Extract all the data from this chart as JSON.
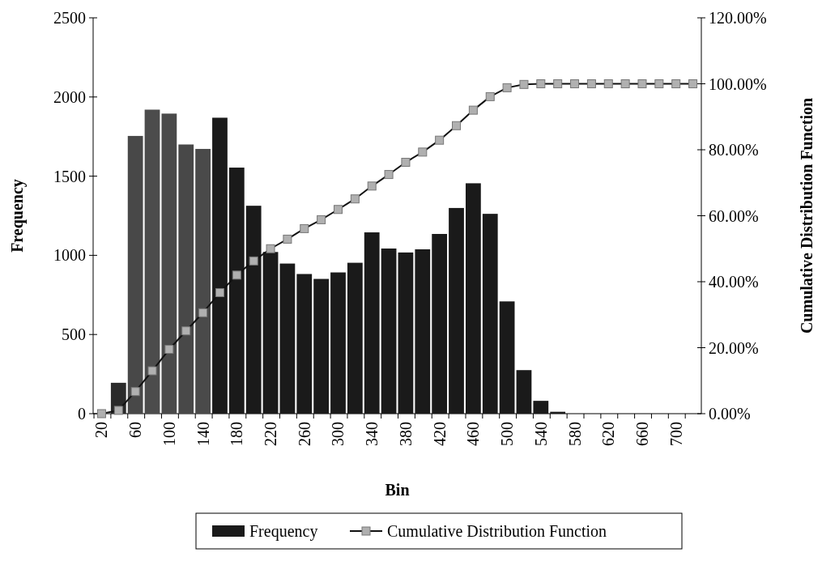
{
  "chart_data": {
    "type": "bar",
    "xlabel": "Bin",
    "ylabel": "Frequency",
    "y2label": "Cumulative Distribution Function",
    "categories": [
      "20",
      null,
      "60",
      null,
      "100",
      null,
      "140",
      null,
      "180",
      null,
      "220",
      null,
      "260",
      null,
      "300",
      null,
      "340",
      null,
      "380",
      null,
      "420",
      null,
      "460",
      null,
      "500",
      null,
      "540",
      null,
      "580",
      null,
      "620",
      null,
      "660",
      null,
      "700",
      null
    ],
    "series": [
      {
        "name": "Frequency",
        "color": "#1a1a1a",
        "colors": [
          "#1a1a1a",
          "#2a2a2a",
          "#484848",
          "#4c4c4c",
          "#4a4a4a",
          "#484848",
          "#4a4a4a",
          "#1a1a1a",
          "#1a1a1a",
          "#1a1a1a",
          "#1a1a1a",
          "#1a1a1a",
          "#1a1a1a",
          "#1a1a1a",
          "#1a1a1a",
          "#1a1a1a",
          "#1a1a1a",
          "#1a1a1a",
          "#1a1a1a",
          "#1a1a1a",
          "#1a1a1a",
          "#1a1a1a",
          "#1a1a1a",
          "#1a1a1a",
          "#1a1a1a",
          "#1a1a1a",
          "#1a1a1a",
          "#1a1a1a",
          "#1a1a1a",
          "#1a1a1a",
          "#1a1a1a",
          "#1a1a1a",
          "#1a1a1a",
          "#1a1a1a",
          "#1a1a1a",
          "#1a1a1a"
        ],
        "values": [
          0,
          195,
          1754,
          1920,
          1895,
          1700,
          1672,
          1869,
          1554,
          1313,
          1021,
          948,
          882,
          851,
          892,
          953,
          1145,
          1043,
          1018,
          1038,
          1135,
          1299,
          1455,
          1262,
          709,
          275,
          81,
          12,
          0,
          0,
          0,
          0,
          0,
          0,
          0,
          0
        ]
      },
      {
        "name": "Cumulative Distribution Function",
        "type": "line",
        "axis": "y2",
        "color": "#b0b0b0",
        "values": [
          0,
          1.0,
          6.7,
          13.0,
          19.5,
          25.1,
          30.6,
          36.7,
          42.0,
          46.3,
          50.0,
          52.9,
          56.1,
          58.8,
          61.9,
          65.1,
          69.0,
          72.5,
          76.2,
          79.3,
          82.9,
          87.3,
          92.0,
          96.1,
          98.8,
          99.8,
          100,
          100,
          100,
          100,
          100,
          100,
          100,
          100,
          100,
          100
        ]
      }
    ],
    "ylim": [
      0,
      2500
    ],
    "yticks": [
      0,
      500,
      1000,
      1500,
      2000,
      2500
    ],
    "y2lim": [
      0,
      120
    ],
    "y2ticks": [
      {
        "value": 0,
        "label": "0.00%"
      },
      {
        "value": 20,
        "label": "20.00%"
      },
      {
        "value": 40,
        "label": "40.00%"
      },
      {
        "value": 60,
        "label": "60.00%"
      },
      {
        "value": 80,
        "label": "80.00%"
      },
      {
        "value": 100,
        "label": "100.00%"
      },
      {
        "value": 120,
        "label": "120.00%"
      }
    ],
    "marker": "square",
    "legend": "bottom",
    "grid": false
  }
}
